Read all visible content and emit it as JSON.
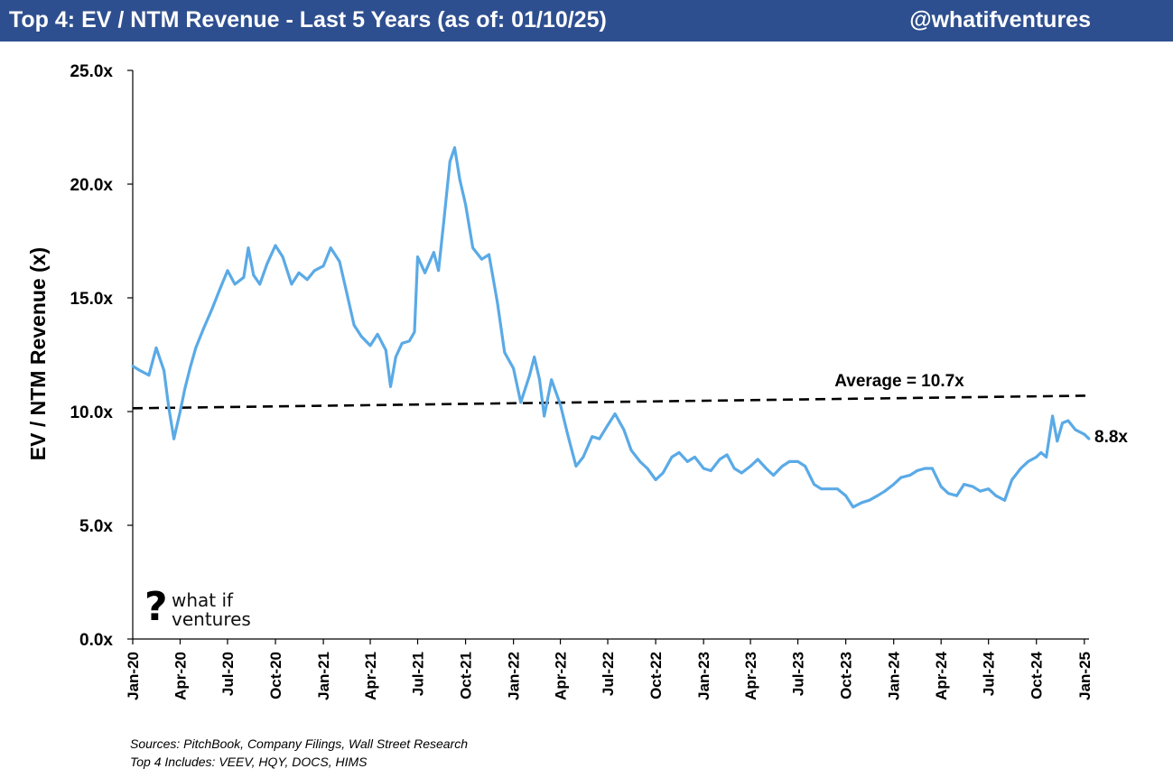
{
  "header": {
    "title": "Top 4: EV / NTM Revenue - Last 5 Years (as of: 01/10/25)",
    "handle": "@whatifventures"
  },
  "logo": {
    "mark": "?",
    "line1": "what if",
    "line2": "ventures"
  },
  "footer": {
    "sources": "Sources: PitchBook, Company Filings, Wall Street Research",
    "includes": "Top 4 Includes: VEEV, HQY, DOCS, HIMS"
  },
  "colors": {
    "header_bg": "#2e4f8f",
    "series": "#5aaae6",
    "average": "#000000"
  },
  "chart_data": {
    "type": "line",
    "title": "Top 4: EV / NTM Revenue - Last 5 Years (as of: 01/10/25)",
    "ylabel": "EV / NTM Revenue (x)",
    "xlabel": "",
    "ylim": [
      0,
      25
    ],
    "yticks": [
      "0.0x",
      "5.0x",
      "10.0x",
      "15.0x",
      "20.0x",
      "25.0x"
    ],
    "ytick_values": [
      0,
      5,
      10,
      15,
      20,
      25
    ],
    "xticks": [
      "Jan-20",
      "Apr-20",
      "Jul-20",
      "Oct-20",
      "Jan-21",
      "Apr-21",
      "Jul-21",
      "Oct-21",
      "Jan-22",
      "Apr-22",
      "Jul-22",
      "Oct-22",
      "Jan-23",
      "Apr-23",
      "Jul-23",
      "Oct-23",
      "Jan-24",
      "Apr-24",
      "Jul-24",
      "Oct-24",
      "Jan-25"
    ],
    "grid": false,
    "legend": "none",
    "series": [
      {
        "values": [
          [
            "2020-01-01",
            12.0
          ],
          [
            "2020-01-15",
            11.8
          ],
          [
            "2020-02-01",
            11.6
          ],
          [
            "2020-02-15",
            12.8
          ],
          [
            "2020-03-01",
            11.8
          ],
          [
            "2020-03-10",
            10.2
          ],
          [
            "2020-03-20",
            8.8
          ],
          [
            "2020-04-01",
            10.0
          ],
          [
            "2020-04-10",
            11.0
          ],
          [
            "2020-04-20",
            11.9
          ],
          [
            "2020-05-01",
            12.8
          ],
          [
            "2020-05-15",
            13.6
          ],
          [
            "2020-06-01",
            14.5
          ],
          [
            "2020-06-15",
            15.3
          ],
          [
            "2020-07-01",
            16.2
          ],
          [
            "2020-07-15",
            15.6
          ],
          [
            "2020-08-01",
            15.9
          ],
          [
            "2020-08-10",
            17.2
          ],
          [
            "2020-08-20",
            16.0
          ],
          [
            "2020-09-01",
            15.6
          ],
          [
            "2020-09-15",
            16.5
          ],
          [
            "2020-10-01",
            17.3
          ],
          [
            "2020-10-15",
            16.8
          ],
          [
            "2020-11-01",
            15.6
          ],
          [
            "2020-11-15",
            16.1
          ],
          [
            "2020-12-01",
            15.8
          ],
          [
            "2020-12-15",
            16.2
          ],
          [
            "2021-01-01",
            16.4
          ],
          [
            "2021-01-15",
            17.2
          ],
          [
            "2021-02-01",
            16.6
          ],
          [
            "2021-02-15",
            15.2
          ],
          [
            "2021-03-01",
            13.8
          ],
          [
            "2021-03-15",
            13.3
          ],
          [
            "2021-04-01",
            12.9
          ],
          [
            "2021-04-15",
            13.4
          ],
          [
            "2021-05-01",
            12.7
          ],
          [
            "2021-05-10",
            11.1
          ],
          [
            "2021-05-20",
            12.4
          ],
          [
            "2021-06-01",
            13.0
          ],
          [
            "2021-06-15",
            13.1
          ],
          [
            "2021-06-25",
            13.5
          ],
          [
            "2021-07-01",
            16.8
          ],
          [
            "2021-07-15",
            16.1
          ],
          [
            "2021-08-01",
            17.0
          ],
          [
            "2021-08-10",
            16.2
          ],
          [
            "2021-08-20",
            18.3
          ],
          [
            "2021-09-01",
            21.0
          ],
          [
            "2021-09-10",
            21.6
          ],
          [
            "2021-09-20",
            20.2
          ],
          [
            "2021-10-01",
            19.1
          ],
          [
            "2021-10-15",
            17.2
          ],
          [
            "2021-11-01",
            16.7
          ],
          [
            "2021-11-15",
            16.9
          ],
          [
            "2021-12-01",
            14.8
          ],
          [
            "2021-12-15",
            12.6
          ],
          [
            "2022-01-01",
            11.9
          ],
          [
            "2022-01-15",
            10.4
          ],
          [
            "2022-02-01",
            11.6
          ],
          [
            "2022-02-10",
            12.4
          ],
          [
            "2022-02-20",
            11.4
          ],
          [
            "2022-03-01",
            9.8
          ],
          [
            "2022-03-15",
            11.4
          ],
          [
            "2022-04-01",
            10.3
          ],
          [
            "2022-04-15",
            9.0
          ],
          [
            "2022-05-01",
            7.6
          ],
          [
            "2022-05-15",
            8.0
          ],
          [
            "2022-06-01",
            8.9
          ],
          [
            "2022-06-15",
            8.8
          ],
          [
            "2022-07-01",
            9.4
          ],
          [
            "2022-07-15",
            9.9
          ],
          [
            "2022-08-01",
            9.2
          ],
          [
            "2022-08-15",
            8.3
          ],
          [
            "2022-09-01",
            7.8
          ],
          [
            "2022-09-15",
            7.5
          ],
          [
            "2022-10-01",
            7.0
          ],
          [
            "2022-10-15",
            7.3
          ],
          [
            "2022-11-01",
            8.0
          ],
          [
            "2022-11-15",
            8.2
          ],
          [
            "2022-12-01",
            7.8
          ],
          [
            "2022-12-15",
            8.0
          ],
          [
            "2023-01-01",
            7.5
          ],
          [
            "2023-01-15",
            7.4
          ],
          [
            "2023-02-01",
            7.9
          ],
          [
            "2023-02-15",
            8.1
          ],
          [
            "2023-03-01",
            7.5
          ],
          [
            "2023-03-15",
            7.3
          ],
          [
            "2023-04-01",
            7.6
          ],
          [
            "2023-04-15",
            7.9
          ],
          [
            "2023-05-01",
            7.5
          ],
          [
            "2023-05-15",
            7.2
          ],
          [
            "2023-06-01",
            7.6
          ],
          [
            "2023-06-15",
            7.8
          ],
          [
            "2023-07-01",
            7.8
          ],
          [
            "2023-07-15",
            7.6
          ],
          [
            "2023-08-01",
            6.8
          ],
          [
            "2023-08-15",
            6.6
          ],
          [
            "2023-09-01",
            6.6
          ],
          [
            "2023-09-15",
            6.6
          ],
          [
            "2023-10-01",
            6.3
          ],
          [
            "2023-10-15",
            5.8
          ],
          [
            "2023-11-01",
            6.0
          ],
          [
            "2023-11-15",
            6.1
          ],
          [
            "2023-12-01",
            6.3
          ],
          [
            "2023-12-15",
            6.5
          ],
          [
            "2024-01-01",
            6.8
          ],
          [
            "2024-01-15",
            7.1
          ],
          [
            "2024-02-01",
            7.2
          ],
          [
            "2024-02-15",
            7.4
          ],
          [
            "2024-03-01",
            7.5
          ],
          [
            "2024-03-15",
            7.5
          ],
          [
            "2024-04-01",
            6.7
          ],
          [
            "2024-04-15",
            6.4
          ],
          [
            "2024-05-01",
            6.3
          ],
          [
            "2024-05-15",
            6.8
          ],
          [
            "2024-06-01",
            6.7
          ],
          [
            "2024-06-15",
            6.5
          ],
          [
            "2024-07-01",
            6.6
          ],
          [
            "2024-07-15",
            6.3
          ],
          [
            "2024-08-01",
            6.1
          ],
          [
            "2024-08-15",
            7.0
          ],
          [
            "2024-09-01",
            7.5
          ],
          [
            "2024-09-15",
            7.8
          ],
          [
            "2024-10-01",
            8.0
          ],
          [
            "2024-10-10",
            8.2
          ],
          [
            "2024-10-20",
            8.0
          ],
          [
            "2024-11-01",
            9.8
          ],
          [
            "2024-11-10",
            8.7
          ],
          [
            "2024-11-20",
            9.5
          ],
          [
            "2024-12-01",
            9.6
          ],
          [
            "2024-12-15",
            9.2
          ],
          [
            "2025-01-01",
            9.0
          ],
          [
            "2025-01-10",
            8.8
          ]
        ]
      }
    ],
    "average": {
      "value": 10.7,
      "label": "Average = 10.7x"
    },
    "last_label": "8.8x"
  }
}
